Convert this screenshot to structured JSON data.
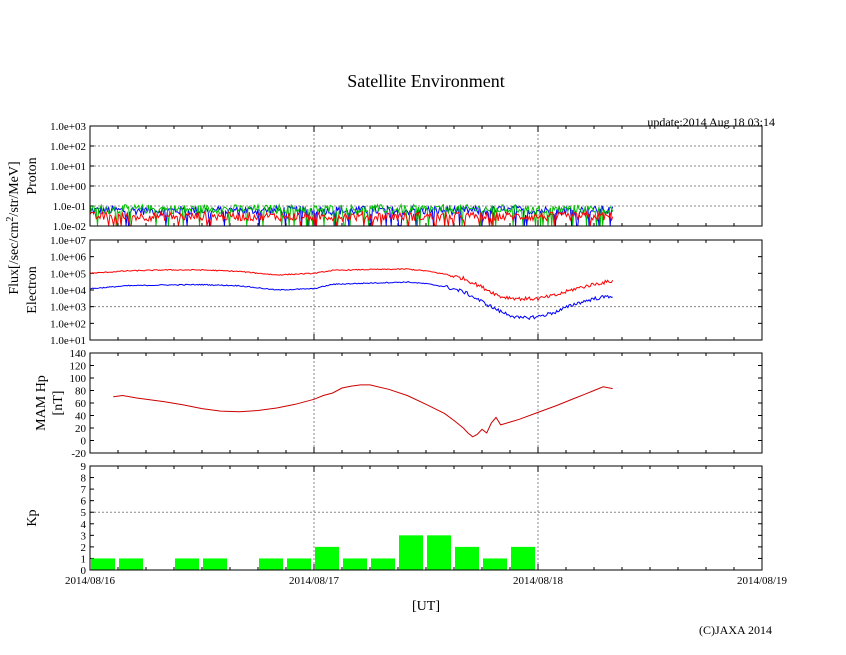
{
  "chart_data": {
    "type": "multi-panel",
    "title": "Satellite Environment",
    "update": "update:2014 Aug 18 03:14",
    "xlabel": "[UT]",
    "copyright": "(C)JAXA 2014",
    "x_ticks": [
      "2014/08/16",
      "2014/08/17",
      "2014/08/18",
      "2014/08/19"
    ],
    "x_range_hours": [
      0,
      72
    ],
    "data_end_hour": 56,
    "flux_label": "Flux[/sec/cm",
    "flux_sup": "2",
    "flux_tail": "/str/MeV]",
    "panels": [
      {
        "id": "proton",
        "type": "line",
        "ylabel": "Proton",
        "scale": "log",
        "ylim_exp": [
          -2,
          3
        ],
        "y_ticks": [
          "1.0e-02",
          "1.0e-01",
          "1.0e+00",
          "1.0e+01",
          "1.0e+02",
          "1.0e+03"
        ],
        "grid_exp": [
          -1,
          0,
          1,
          2
        ],
        "series": [
          {
            "name": "proton-low",
            "color": "#0000ff",
            "level": 0.06
          },
          {
            "name": "proton-mid",
            "color": "#00c000",
            "level": 0.07
          },
          {
            "name": "proton-high",
            "color": "#ff0000",
            "level": 0.03
          }
        ]
      },
      {
        "id": "electron",
        "type": "line",
        "ylabel": "Electron",
        "scale": "log",
        "ylim_exp": [
          1,
          7
        ],
        "y_ticks": [
          "1.0e+01",
          "1.0e+02",
          "1.0e+03",
          "1.0e+04",
          "1.0e+05",
          "1.0e+06",
          "1.0e+07"
        ],
        "grid_exp": [
          3
        ],
        "series": [
          {
            "name": "electron-high",
            "color": "#ff0000",
            "points": [
              [
                0,
                100000.0
              ],
              [
                4,
                140000.0
              ],
              [
                8,
                160000.0
              ],
              [
                12,
                160000.0
              ],
              [
                16,
                130000.0
              ],
              [
                20,
                80000.0
              ],
              [
                24,
                100000.0
              ],
              [
                26,
                150000.0
              ],
              [
                30,
                170000.0
              ],
              [
                34,
                180000.0
              ],
              [
                36,
                140000.0
              ],
              [
                38,
                90000.0
              ],
              [
                40,
                50000.0
              ],
              [
                42,
                15000.0
              ],
              [
                44,
                4000.0
              ],
              [
                46,
                3000.0
              ],
              [
                48,
                3000.0
              ],
              [
                50,
                5000.0
              ],
              [
                52,
                12000.0
              ],
              [
                54,
                22000.0
              ],
              [
                56,
                35000.0
              ]
            ]
          },
          {
            "name": "electron-low",
            "color": "#0000ff",
            "points": [
              [
                0,
                12000.0
              ],
              [
                4,
                18000.0
              ],
              [
                8,
                20000.0
              ],
              [
                12,
                21000.0
              ],
              [
                16,
                18000.0
              ],
              [
                20,
                10000.0
              ],
              [
                24,
                12000.0
              ],
              [
                26,
                22000.0
              ],
              [
                30,
                26000.0
              ],
              [
                34,
                30000.0
              ],
              [
                36,
                24000.0
              ],
              [
                38,
                16000.0
              ],
              [
                40,
                8000.0
              ],
              [
                42,
                2000.0
              ],
              [
                44,
                500.0
              ],
              [
                46,
                200.0
              ],
              [
                48,
                250.0
              ],
              [
                50,
                500.0
              ],
              [
                52,
                1500.0
              ],
              [
                54,
                3000.0
              ],
              [
                56,
                4500.0
              ]
            ]
          }
        ]
      },
      {
        "id": "mam-hp",
        "type": "line",
        "ylabel1": "MAM Hp",
        "ylabel2": "[nT]",
        "scale": "linear",
        "ylim": [
          -20,
          140
        ],
        "y_ticks": [
          -20,
          0,
          20,
          40,
          60,
          80,
          100,
          120,
          140
        ],
        "series": [
          {
            "name": "Hp",
            "color": "#cc0000",
            "points": [
              [
                2.5,
                70
              ],
              [
                3.5,
                72
              ],
              [
                5,
                68
              ],
              [
                8,
                62
              ],
              [
                10,
                57
              ],
              [
                12,
                51
              ],
              [
                14,
                47
              ],
              [
                16,
                46
              ],
              [
                18,
                48
              ],
              [
                20,
                52
              ],
              [
                22,
                58
              ],
              [
                24,
                66
              ],
              [
                25,
                72
              ],
              [
                26,
                76
              ],
              [
                27,
                84
              ],
              [
                28,
                87
              ],
              [
                29,
                89
              ],
              [
                30,
                89
              ],
              [
                32,
                82
              ],
              [
                34,
                72
              ],
              [
                36,
                58
              ],
              [
                38,
                43
              ],
              [
                39,
                32
              ],
              [
                40,
                20
              ],
              [
                40.5,
                12
              ],
              [
                41,
                6
              ],
              [
                41.5,
                10
              ],
              [
                42,
                18
              ],
              [
                42.5,
                12
              ],
              [
                43,
                28
              ],
              [
                43.5,
                37
              ],
              [
                44,
                25
              ],
              [
                46,
                34
              ],
              [
                48,
                45
              ],
              [
                50,
                56
              ],
              [
                52,
                68
              ],
              [
                53,
                74
              ],
              [
                54,
                80
              ],
              [
                55,
                86
              ],
              [
                56,
                83
              ]
            ]
          }
        ]
      },
      {
        "id": "kp",
        "type": "bar",
        "ylabel": "Kp",
        "ylim": [
          0,
          9
        ],
        "y_ticks": [
          0,
          1,
          2,
          3,
          4,
          5,
          6,
          7,
          8,
          9
        ],
        "threshold": 5,
        "color": "#00ff00",
        "bar_width_hours": 3,
        "values": [
          1,
          1,
          0,
          1,
          1,
          0,
          1,
          1,
          2,
          1,
          1,
          3,
          3,
          2,
          1,
          2,
          0,
          0,
          0,
          0,
          0,
          0,
          0,
          0
        ]
      }
    ]
  }
}
